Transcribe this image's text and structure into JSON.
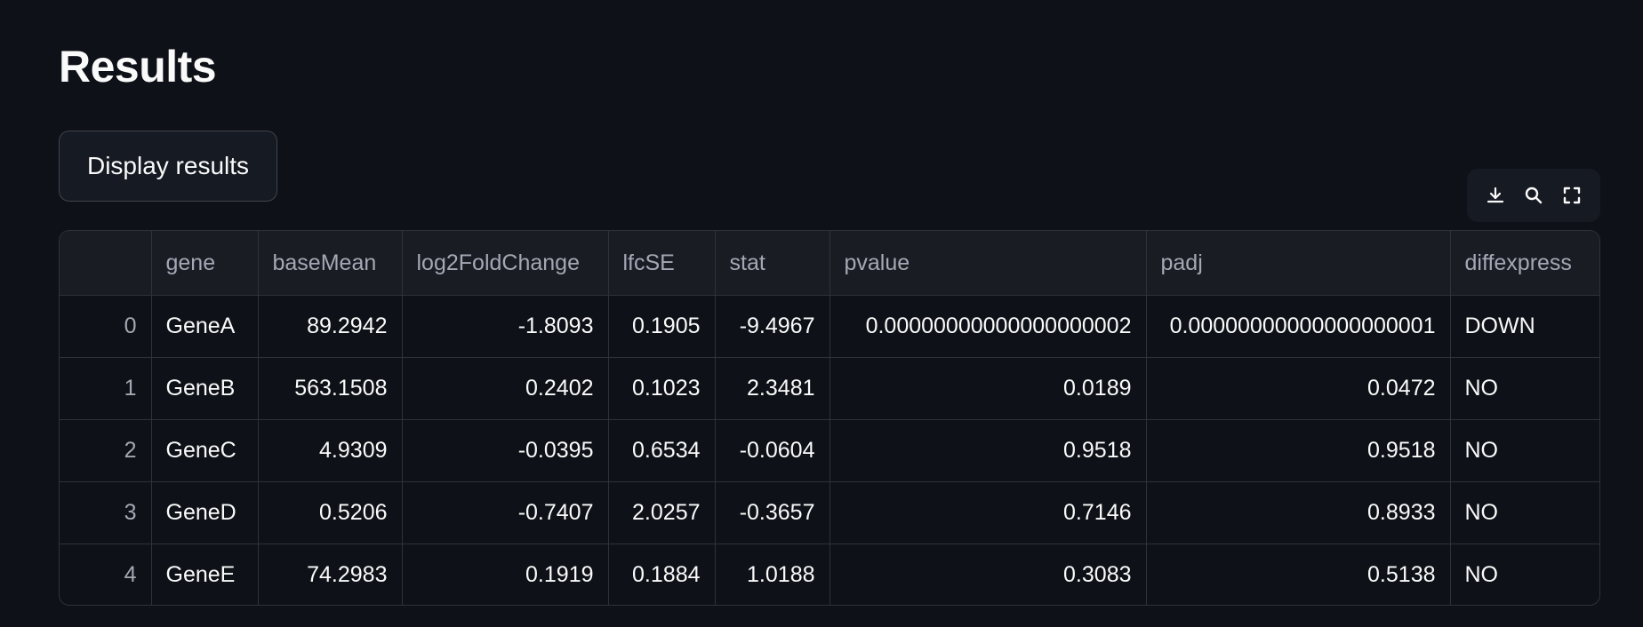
{
  "title": "Results",
  "button": {
    "label": "Display results"
  },
  "toolbar": {
    "download_icon": "download-icon",
    "search_icon": "search-icon",
    "fullscreen_icon": "fullscreen-icon"
  },
  "table": {
    "columns": [
      "",
      "gene",
      "baseMean",
      "log2FoldChange",
      "lfcSE",
      "stat",
      "pvalue",
      "padj",
      "diffexpress"
    ],
    "rows": [
      [
        "0",
        "GeneA",
        "89.2942",
        "-1.8093",
        "0.1905",
        "-9.4967",
        "0.00000000000000000002",
        "0.00000000000000000001",
        "DOWN"
      ],
      [
        "1",
        "GeneB",
        "563.1508",
        "0.2402",
        "0.1023",
        "2.3481",
        "0.0189",
        "0.0472",
        "NO"
      ],
      [
        "2",
        "GeneC",
        "4.9309",
        "-0.0395",
        "0.6534",
        "-0.0604",
        "0.9518",
        "0.9518",
        "NO"
      ],
      [
        "3",
        "GeneD",
        "0.5206",
        "-0.7407",
        "2.0257",
        "-0.3657",
        "0.7146",
        "0.8933",
        "NO"
      ],
      [
        "4",
        "GeneE",
        "74.2983",
        "0.1919",
        "0.1884",
        "1.0188",
        "0.3083",
        "0.5138",
        "NO"
      ]
    ]
  },
  "colors": {
    "background": "#0e1117",
    "header_bg": "#1a1c24",
    "border": "#2e323b",
    "header_text": "#a3a8b4",
    "text": "#fafafa"
  }
}
